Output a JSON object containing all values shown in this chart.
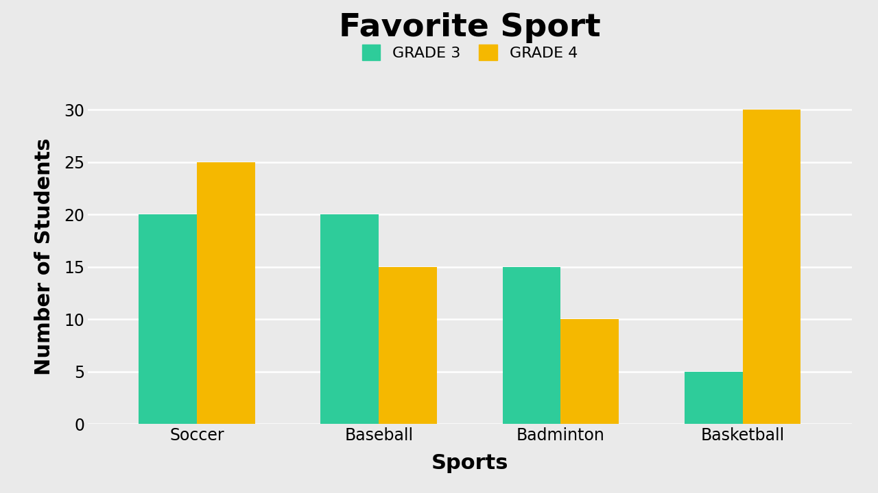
{
  "title": "Favorite Sport",
  "xlabel": "Sports",
  "ylabel": "Number of Students",
  "categories": [
    "Soccer",
    "Baseball",
    "Badminton",
    "Basketball"
  ],
  "grade3": [
    20,
    20,
    15,
    5
  ],
  "grade4": [
    25,
    15,
    10,
    30
  ],
  "grade3_color": "#2ECC9A",
  "grade4_color": "#F5B800",
  "background_color": "#EAEAEA",
  "yticks": [
    0,
    5,
    10,
    15,
    20,
    25,
    30
  ],
  "ylim": [
    0,
    32
  ],
  "legend_labels": [
    "GRADE 3",
    "GRADE 4"
  ],
  "title_fontsize": 34,
  "axis_label_fontsize": 22,
  "tick_fontsize": 17,
  "legend_fontsize": 16,
  "bar_width": 0.32,
  "grid_color": "#ffffff",
  "title_fontweight": "bold",
  "axis_label_fontweight": "bold"
}
